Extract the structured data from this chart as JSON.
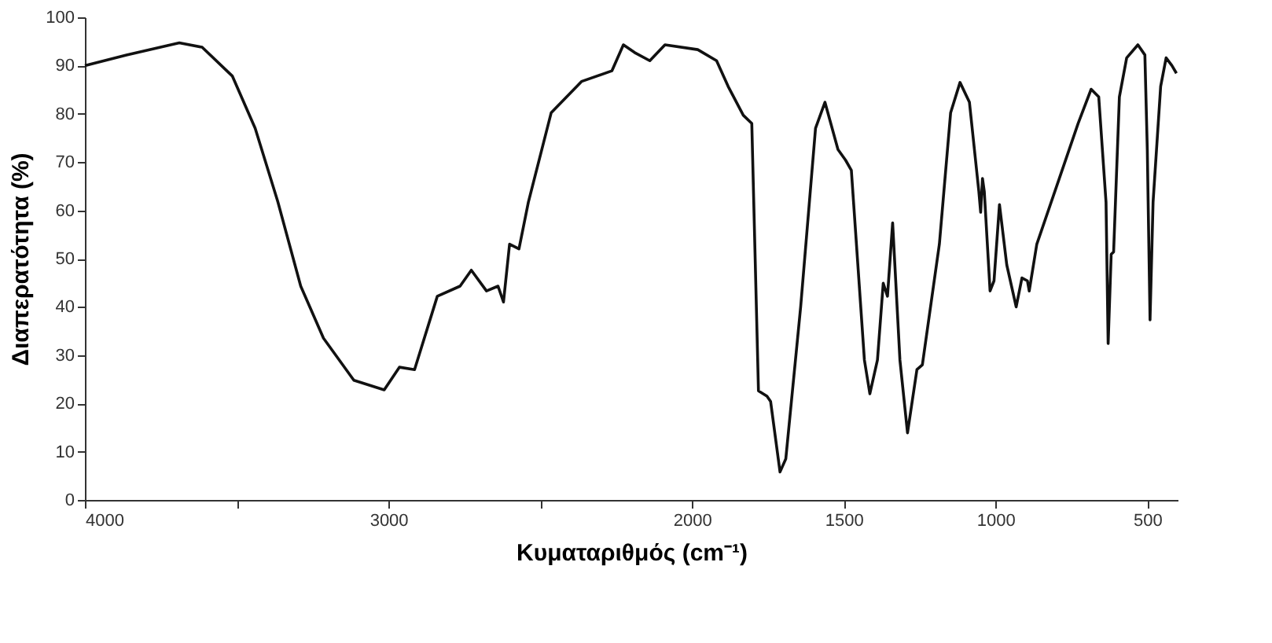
{
  "chart_data": {
    "type": "line",
    "xlabel": "Κυματαριθμός (cm⁻¹)",
    "ylabel": "Διαπερατότητα  (%)",
    "xlim": [
      4000,
      400
    ],
    "ylim": [
      0,
      100
    ],
    "xticks": [
      4000,
      {
        "value": 3500,
        "label": null
      },
      3000,
      {
        "value": 2500,
        "label": null
      },
      2000,
      1500,
      1000,
      500
    ],
    "yticks": [
      0,
      10,
      20,
      30,
      40,
      50,
      60,
      70,
      80,
      90,
      100
    ],
    "grid": false,
    "marker": "none",
    "line_style": "solid",
    "series": [
      {
        "color": "#111111",
        "x": [
          4000,
          3863,
          3689,
          3614,
          3514,
          3439,
          3364,
          3289,
          3214,
          3114,
          3014,
          2964,
          2914,
          2839,
          2764,
          2727,
          2677,
          2639,
          2621,
          2601,
          2570,
          2539,
          2464,
          2364,
          2264,
          2226,
          2189,
          2139,
          2089,
          1981,
          1919,
          1881,
          1831,
          1803,
          1781,
          1753,
          1741,
          1710,
          1691,
          1642,
          1593,
          1562,
          1519,
          1494,
          1475,
          1432,
          1414,
          1389,
          1370,
          1356,
          1339,
          1315,
          1290,
          1259,
          1241,
          1185,
          1148,
          1117,
          1086,
          1055,
          1049,
          1043,
          1037,
          1018,
          1005,
          987,
          963,
          932,
          913,
          895,
          889,
          864,
          790,
          728,
          685,
          660,
          636,
          629,
          619,
          611,
          592,
          568,
          531,
          508,
          500,
          491,
          481,
          456,
          438,
          419,
          404
        ],
        "values": [
          90,
          92.2,
          94.7,
          93.8,
          87.8,
          77,
          61.7,
          44.3,
          33.5,
          24.8,
          22.8,
          27.5,
          27,
          42.2,
          44.3,
          47.6,
          43.3,
          44.3,
          41,
          53,
          52,
          61.7,
          80.2,
          86.7,
          88.9,
          94.3,
          92.7,
          91,
          94.3,
          93.3,
          91,
          85.7,
          79.7,
          78,
          22.6,
          21.5,
          20.4,
          5.8,
          8.5,
          40,
          77,
          82.4,
          72.6,
          70.4,
          68.3,
          29,
          22,
          29,
          44.9,
          42.2,
          57.4,
          29,
          13.9,
          27,
          28,
          53,
          80.2,
          86.5,
          82.4,
          63.9,
          59.6,
          66.6,
          63.9,
          43.3,
          45.4,
          61.2,
          48.7,
          40,
          46,
          45.4,
          43.3,
          53,
          66.6,
          78,
          85.1,
          83.5,
          61.7,
          32.4,
          50.9,
          51.4,
          83.5,
          91.6,
          94.3,
          92.2,
          72.6,
          37.3,
          61.7,
          85.7,
          91.6,
          90,
          88.4
        ]
      }
    ]
  }
}
